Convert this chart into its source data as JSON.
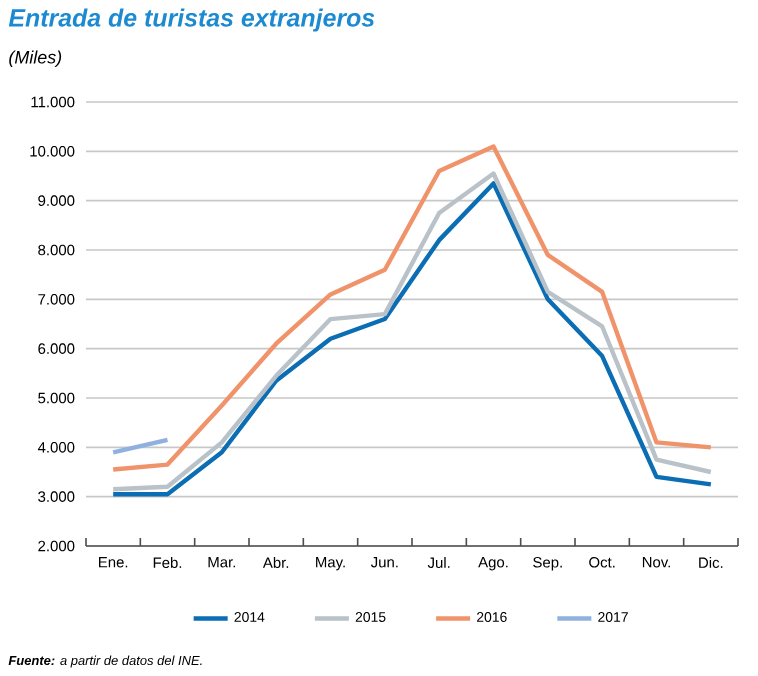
{
  "chart_data": {
    "type": "line",
    "title": "Entrada de turistas extranjeros",
    "subtitle": "(Miles)",
    "categories": [
      "Ene.",
      "Feb.",
      "Mar.",
      "Abr.",
      "May.",
      "Jun.",
      "Jul.",
      "Ago.",
      "Sep.",
      "Oct.",
      "Nov.",
      "Dic."
    ],
    "series": [
      {
        "name": "2014",
        "color": "#0b6db3",
        "values": [
          3050,
          3050,
          3900,
          5350,
          6200,
          6600,
          8200,
          9350,
          7000,
          5850,
          3400,
          3250
        ]
      },
      {
        "name": "2015",
        "color": "#b9c2c8",
        "values": [
          3150,
          3200,
          4100,
          5450,
          6600,
          6700,
          8750,
          9550,
          7150,
          6450,
          3750,
          3500
        ]
      },
      {
        "name": "2016",
        "color": "#f0936a",
        "values": [
          3550,
          3650,
          4850,
          6100,
          7100,
          7600,
          9600,
          10100,
          7900,
          7150,
          4100,
          4000
        ]
      },
      {
        "name": "2017",
        "color": "#8fb1e0",
        "values": [
          3900,
          4150,
          null,
          null,
          null,
          null,
          null,
          null,
          null,
          null,
          null,
          null
        ]
      }
    ],
    "ylim": [
      2000,
      11000
    ],
    "yticks": [
      {
        "value": 2000,
        "label": "2.000"
      },
      {
        "value": 3000,
        "label": "3.000"
      },
      {
        "value": 4000,
        "label": "4.000"
      },
      {
        "value": 5000,
        "label": "5.000"
      },
      {
        "value": 6000,
        "label": "6.000"
      },
      {
        "value": 7000,
        "label": "7.000"
      },
      {
        "value": 8000,
        "label": "8.000"
      },
      {
        "value": 9000,
        "label": "9.000"
      },
      {
        "value": 10000,
        "label": "10.000"
      },
      {
        "value": 11000,
        "label": "11.000"
      }
    ],
    "grid": "y",
    "legend": "bottom",
    "marker": "none",
    "line_style": "solid",
    "annotations": [
      "**Fuente:** *a partir de datos del INE.*"
    ]
  }
}
